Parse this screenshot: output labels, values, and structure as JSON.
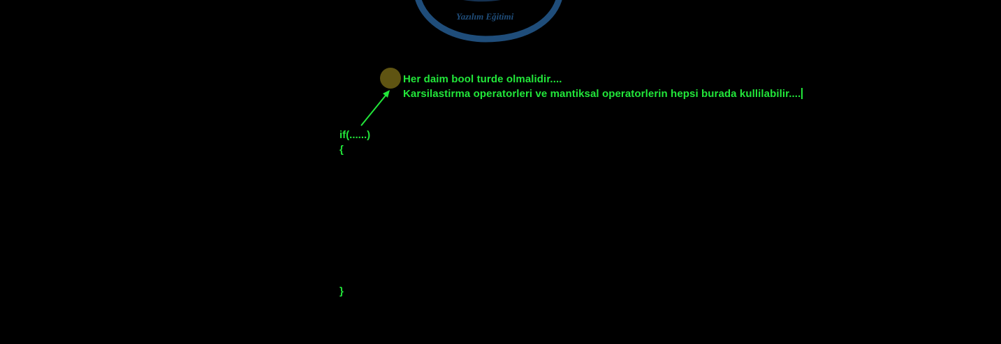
{
  "watermark": {
    "subtitle": "Yazılım Eğitimi"
  },
  "notes": {
    "line1": "Her daim bool turde olmalidir....",
    "line2": "Karsilastirma operatorleri ve mantiksal operatorlerin hepsi burada kullilabilir...."
  },
  "code": {
    "if_line": "if(......)",
    "open_brace": "{",
    "close_brace": "}"
  },
  "colors": {
    "background": "#000000",
    "text": "#22e63a",
    "pointer": "#5f5412",
    "watermark": "#1f4d7a"
  },
  "icons": {
    "pointer": "cursor-highlight-icon",
    "arrow": "arrow-up-right-icon",
    "logo": "logo-swoosh-icon"
  }
}
